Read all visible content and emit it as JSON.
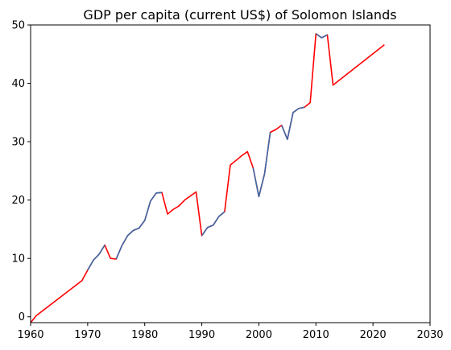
{
  "chart_data": {
    "type": "line",
    "title": "GDP per capita (current US$) of Solomon Islands",
    "xlabel": "",
    "ylabel": "",
    "xlim": [
      1960,
      2030
    ],
    "ylim": [
      -1,
      50
    ],
    "xticks": [
      1960,
      1970,
      1980,
      1990,
      2000,
      2010,
      2020,
      2030
    ],
    "yticks": [
      0,
      10,
      20,
      30,
      40,
      50
    ],
    "grid": false,
    "series": [
      {
        "color": "#ff0000",
        "x": [
          1960,
          1961,
          1969,
          1970,
          1971,
          1972,
          1973,
          1974,
          1975,
          1976,
          1977,
          1978,
          1979,
          1980,
          1981,
          1982,
          1983,
          1984,
          1985,
          1986,
          1987,
          1988,
          1989,
          1990,
          1991,
          1992,
          1993,
          1994,
          1995,
          1996,
          1997,
          1998,
          1999,
          2000,
          2001,
          2002,
          2003,
          2004,
          2005,
          2006,
          2007,
          2008,
          2009,
          2010,
          2011,
          2012,
          2013,
          2022
        ],
        "y": [
          -1.0,
          0.2,
          6.2,
          8.0,
          9.7,
          10.7,
          12.3,
          10.0,
          9.9,
          12.2,
          13.9,
          14.8,
          15.2,
          16.5,
          19.8,
          21.2,
          21.3,
          17.6,
          18.4,
          19.0,
          20.0,
          20.7,
          21.4,
          13.9,
          15.3,
          15.7,
          17.2,
          18.0,
          26.0,
          26.8,
          27.6,
          28.3,
          25.5,
          20.6,
          24.5,
          31.6,
          32.1,
          32.8,
          30.4,
          35.0,
          35.7,
          35.9,
          36.7,
          48.5,
          47.8,
          48.3,
          39.7,
          46.6
        ]
      },
      {
        "color": "#3a6aa8",
        "segments": [
          {
            "x": [
              1970,
              1971,
              1972,
              1973
            ],
            "y": [
              8.0,
              9.7,
              10.7,
              12.3
            ]
          },
          {
            "x": [
              1975,
              1976,
              1977,
              1978,
              1979,
              1980,
              1981,
              1982,
              1983
            ],
            "y": [
              9.9,
              12.2,
              13.9,
              14.8,
              15.2,
              16.5,
              19.8,
              21.2,
              21.3
            ]
          },
          {
            "x": [
              1990,
              1991,
              1992,
              1993,
              1994
            ],
            "y": [
              13.9,
              15.3,
              15.7,
              17.2,
              18.0
            ]
          },
          {
            "x": [
              1999,
              2000,
              2001,
              2002
            ],
            "y": [
              25.5,
              20.6,
              24.5,
              31.6
            ]
          },
          {
            "x": [
              2004,
              2005,
              2006,
              2007,
              2008
            ],
            "y": [
              32.8,
              30.4,
              35.0,
              35.7,
              35.9
            ]
          },
          {
            "x": [
              2010,
              2011,
              2012
            ],
            "y": [
              48.5,
              47.8,
              48.3
            ]
          }
        ]
      }
    ]
  }
}
